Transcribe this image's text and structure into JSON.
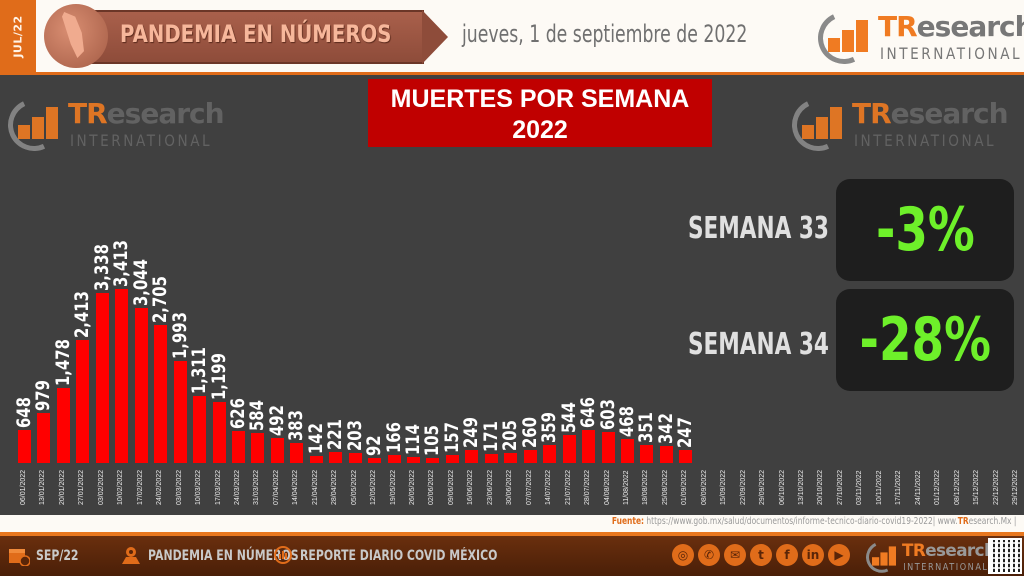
{
  "header": {
    "side_tab": "JUL/22",
    "banner_title": "PANDEMIA EN NÚMEROS",
    "date": "jueves, 1 de septiembre de 2022",
    "logo": {
      "brand_tr": "TR",
      "brand_rest": "esearch",
      "subtitle": "INTERNATIONAL"
    }
  },
  "main": {
    "title_line1": "MUERTES POR SEMANA",
    "title_line2": "2022",
    "stats": [
      {
        "label": "SEMANA 33",
        "value": "-3%"
      },
      {
        "label": "SEMANA 34",
        "value": "-28%"
      }
    ],
    "source_prefix": "Fuente:",
    "source_text": " https://www.gob.mx/salud/documentos/informe-tecnico-diario-covid19-2022| www.",
    "source_tr": "TR",
    "source_suffix": "esearch.Mx |"
  },
  "colors": {
    "bar": "#ff0000",
    "title_bg": "#c00000",
    "accent_orange": "#e06c1a",
    "positive_green": "#6ef02a",
    "panel_bg": "#404040"
  },
  "chart_data": {
    "type": "bar",
    "title": "MUERTES POR SEMANA 2022",
    "xlabel": "",
    "ylabel": "",
    "grid": false,
    "legend": null,
    "categories": [
      "06/01/2022",
      "13/01/2022",
      "20/01/2022",
      "27/01/2022",
      "03/02/2022",
      "10/02/2022",
      "17/02/2022",
      "24/02/2022",
      "03/03/2022",
      "10/03/2022",
      "17/03/2022",
      "24/03/2022",
      "31/03/2022",
      "07/04/2022",
      "14/04/2022",
      "21/04/2022",
      "28/04/2022",
      "05/05/2022",
      "12/05/2022",
      "19/05/2022",
      "26/05/2022",
      "02/06/2022",
      "09/06/2022",
      "16/06/2022",
      "23/06/2022",
      "30/06/2022",
      "07/07/2022",
      "14/07/2022",
      "21/07/2022",
      "28/07/2022",
      "04/08/2022",
      "11/08/2022",
      "18/08/2022",
      "25/08/2022",
      "01/09/2022",
      "08/09/2022",
      "15/09/2022",
      "22/09/2022",
      "29/09/2022",
      "06/10/2022",
      "13/10/2022",
      "20/10/2022",
      "27/10/2022",
      "03/11/2022",
      "10/11/2022",
      "17/11/2022",
      "24/11/2022",
      "01/12/2022",
      "08/12/2022",
      "15/12/2022",
      "22/12/2022",
      "29/12/2022"
    ],
    "values": [
      648,
      979,
      1478,
      2413,
      3338,
      3413,
      3044,
      2705,
      1993,
      1311,
      1199,
      626,
      584,
      492,
      383,
      142,
      221,
      203,
      92,
      166,
      114,
      105,
      157,
      249,
      171,
      205,
      260,
      359,
      544,
      646,
      603,
      468,
      351,
      342,
      247,
      null,
      null,
      null,
      null,
      null,
      null,
      null,
      null,
      null,
      null,
      null,
      null,
      null,
      null,
      null,
      null,
      null
    ],
    "value_labels": [
      "648",
      "979",
      "1,478",
      "2,413",
      "3,338",
      "3,413",
      "3,044",
      "2,705",
      "1,993",
      "1,311",
      "1,199",
      "626",
      "584",
      "492",
      "383",
      "142",
      "221",
      "203",
      "92",
      "166",
      "114",
      "105",
      "157",
      "249",
      "171",
      "205",
      "260",
      "359",
      "544",
      "646",
      "603",
      "468",
      "351",
      "342",
      "247"
    ],
    "ylim": [
      0,
      3600
    ]
  },
  "footer": {
    "items": [
      {
        "icon": "calendar-clock-icon",
        "label": "SEP/22"
      },
      {
        "icon": "map-pin-icon",
        "label": "PANDEMIA EN NÚMEROS"
      },
      {
        "icon": "chart-bubble-icon",
        "label": "REPORTE DIARIO COVID MÉXICO"
      }
    ],
    "social": [
      {
        "icon": "globe-icon",
        "glyph": "◎"
      },
      {
        "icon": "phone-icon",
        "glyph": "✆"
      },
      {
        "icon": "mail-icon",
        "glyph": "✉"
      },
      {
        "icon": "twitter-icon",
        "glyph": "t"
      },
      {
        "icon": "facebook-icon",
        "glyph": "f"
      },
      {
        "icon": "linkedin-icon",
        "glyph": "in"
      },
      {
        "icon": "youtube-icon",
        "glyph": "▶"
      }
    ],
    "logo": {
      "brand_tr": "TR",
      "brand_rest": "esearch",
      "subtitle": "INTERNATIONAL"
    }
  }
}
